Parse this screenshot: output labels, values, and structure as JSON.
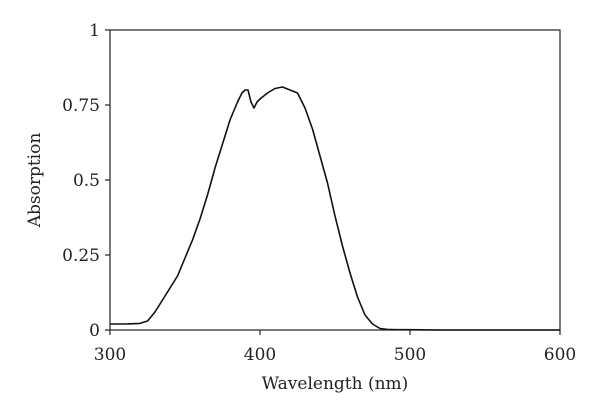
{
  "chart_data": {
    "type": "line",
    "title": "",
    "xlabel": "Wavelength (nm)",
    "ylabel": "Absorption",
    "xlim": [
      300,
      600
    ],
    "ylim": [
      0,
      1
    ],
    "xticks": [
      300,
      400,
      500,
      600
    ],
    "xtick_labels": [
      "300",
      "400",
      "500",
      "600"
    ],
    "yticks": [
      0,
      0.25,
      0.5,
      0.75,
      1
    ],
    "ytick_labels": [
      "0",
      "0.25",
      "0.5",
      "0.75",
      "1"
    ],
    "grid": false,
    "legend": "none",
    "series": [
      {
        "color": "#111111",
        "x": [
          300,
          310,
          320,
          325,
          330,
          335,
          340,
          345,
          350,
          355,
          360,
          365,
          370,
          375,
          380,
          385,
          388,
          390,
          392,
          394,
          396,
          398,
          400,
          405,
          410,
          415,
          420,
          425,
          430,
          435,
          440,
          445,
          450,
          455,
          460,
          465,
          470,
          475,
          480,
          485,
          490,
          500,
          520,
          550,
          580,
          600
        ],
        "y": [
          0.02,
          0.02,
          0.022,
          0.03,
          0.06,
          0.1,
          0.14,
          0.18,
          0.24,
          0.3,
          0.37,
          0.45,
          0.54,
          0.62,
          0.7,
          0.76,
          0.79,
          0.8,
          0.8,
          0.76,
          0.74,
          0.76,
          0.77,
          0.79,
          0.805,
          0.81,
          0.8,
          0.79,
          0.74,
          0.67,
          0.58,
          0.49,
          0.38,
          0.28,
          0.19,
          0.11,
          0.05,
          0.02,
          0.005,
          0.002,
          0.001,
          0.001,
          0.0,
          0.0,
          0.0,
          0.0
        ]
      }
    ]
  }
}
